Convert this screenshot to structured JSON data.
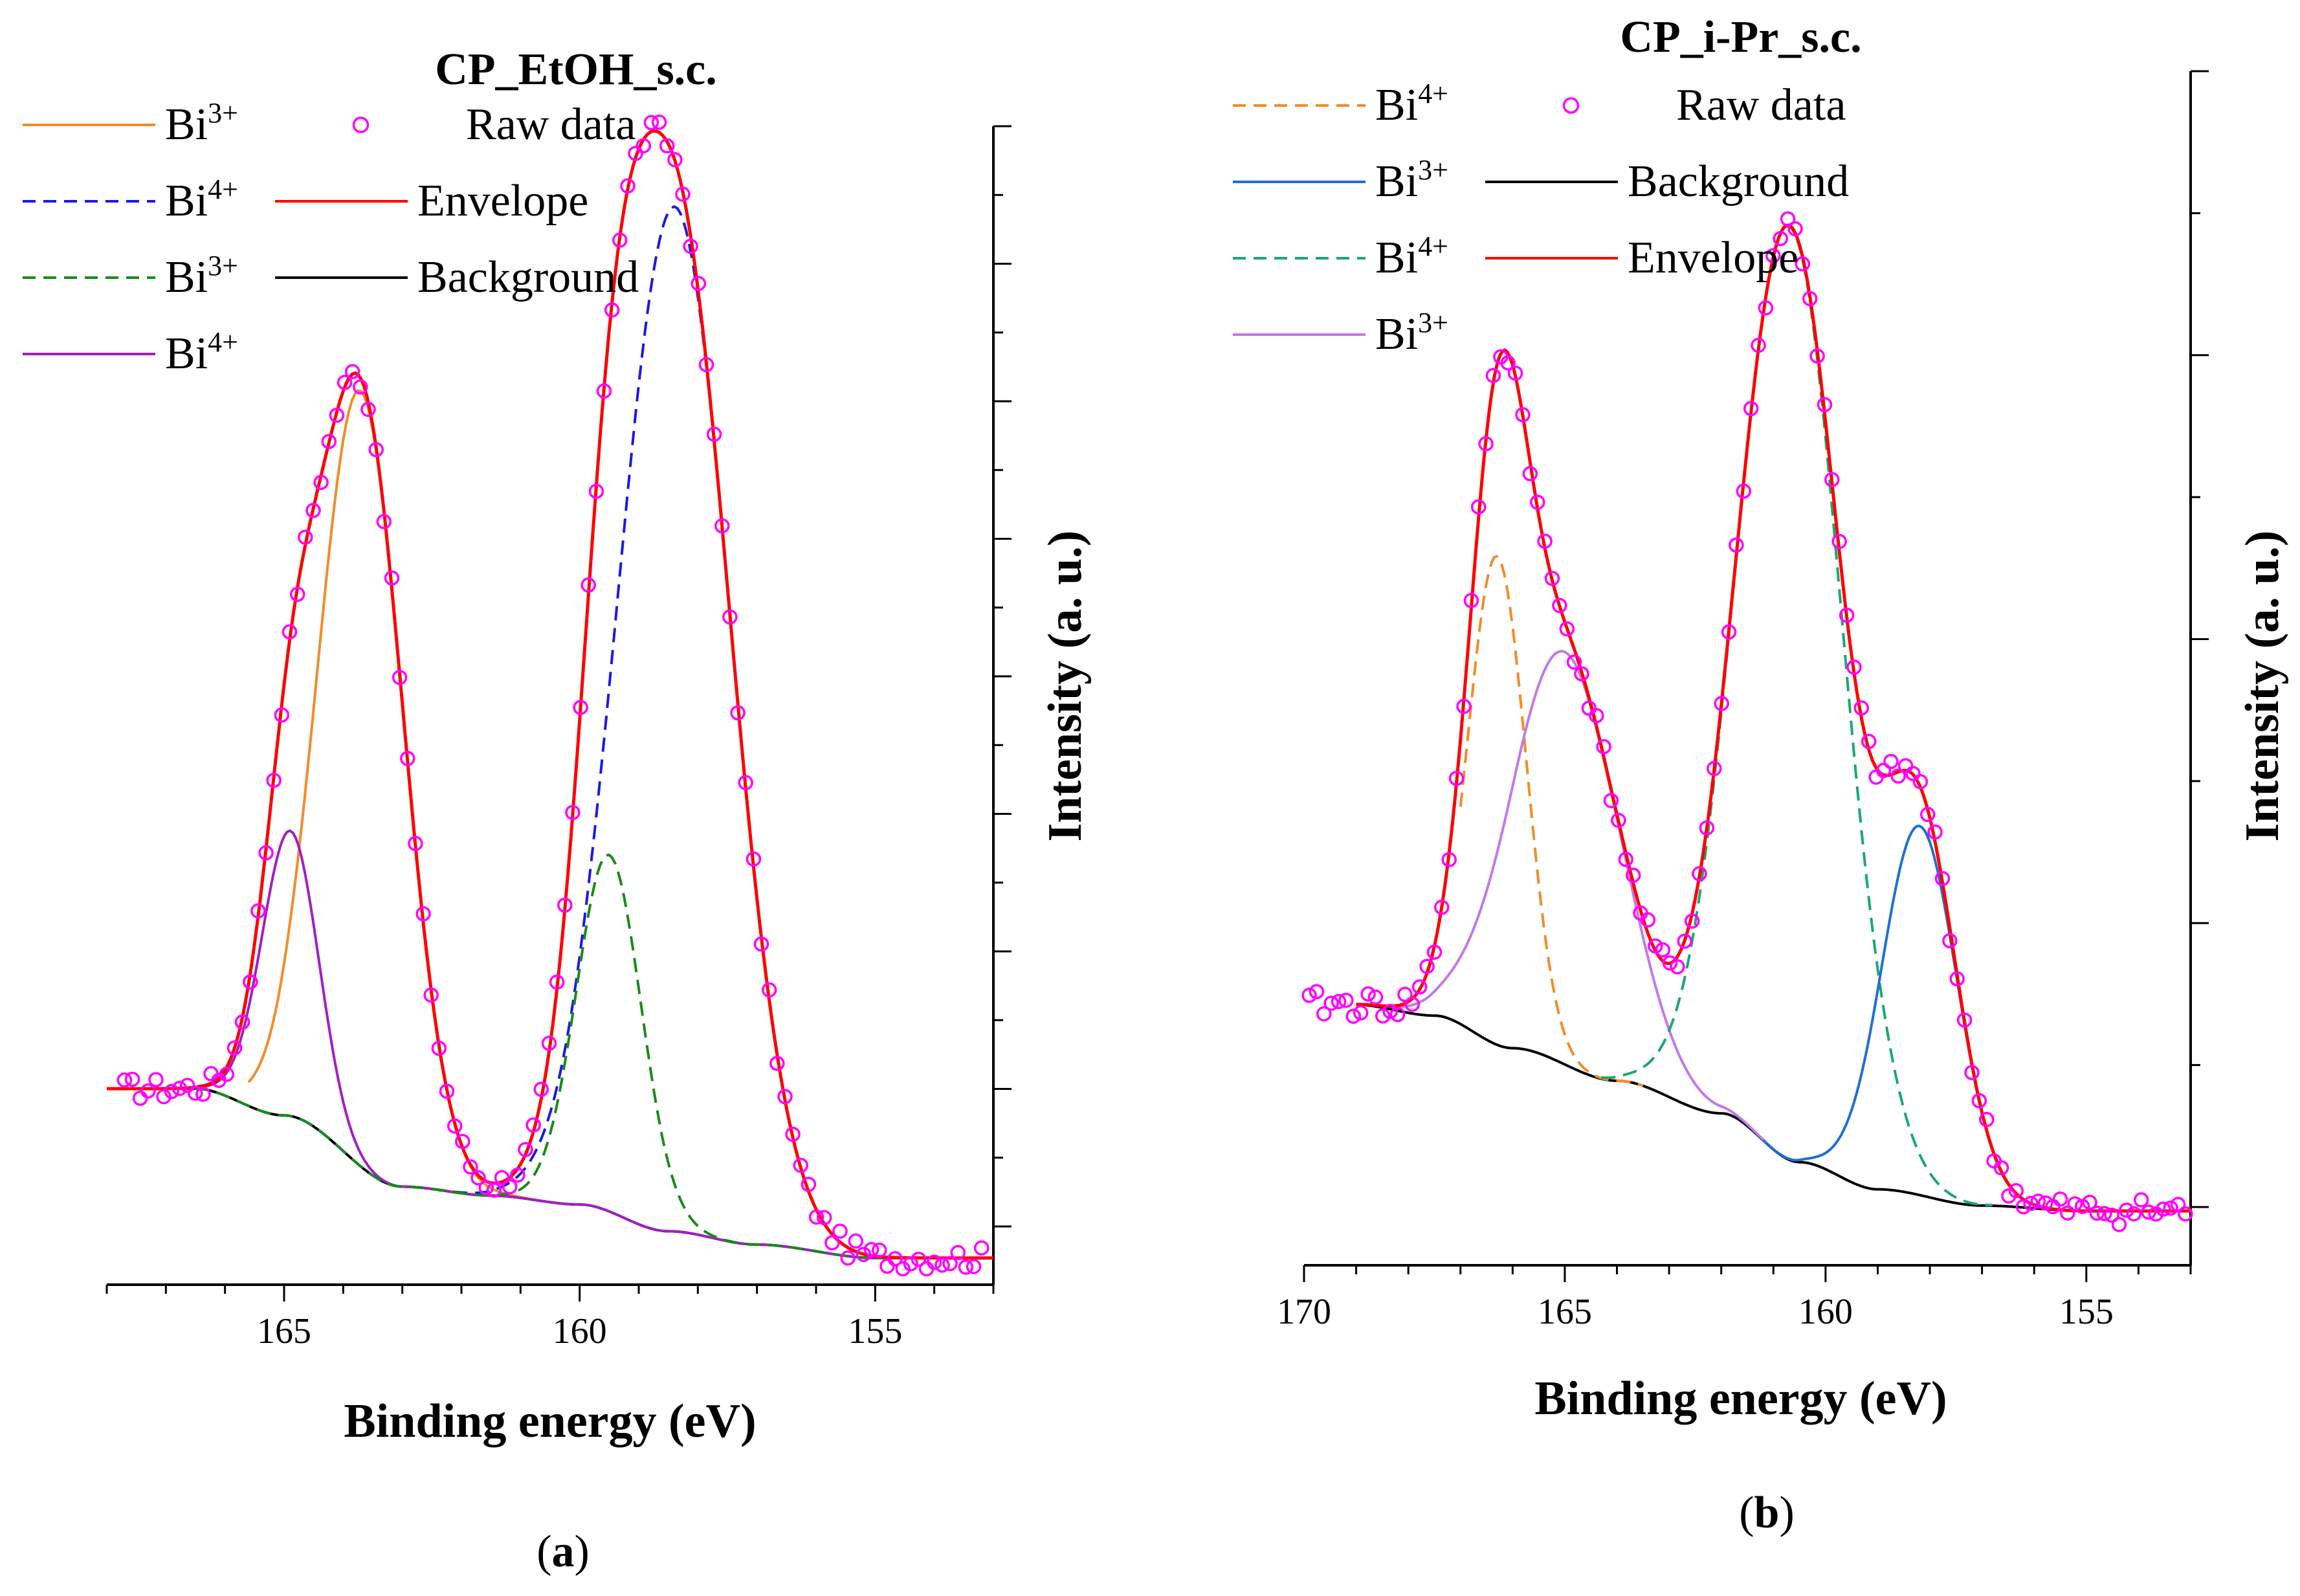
{
  "chart_data": [
    {
      "type": "line",
      "panel_label": "(a)",
      "panel_letter": "a",
      "title": "CP_EtOH_s.c.",
      "xlabel": "Binding energy (eV)",
      "ylabel": "Intensity (a. u.)",
      "xlim": [
        168,
        153
      ],
      "ylim": [
        -0.05,
        1.25
      ],
      "x_ticks": [
        165,
        160,
        155
      ],
      "x_tick_labels": [
        "165",
        "160",
        "155"
      ],
      "legend": [
        {
          "key": "bi3_orange",
          "label": "Bi",
          "sup": "3+",
          "color": "#f28c28",
          "style": "solid"
        },
        {
          "key": "raw",
          "label": "Raw data",
          "color": "#ff00ff",
          "style": "marker"
        },
        {
          "key": "bi4_blue",
          "label": "Bi",
          "sup": "4+",
          "color": "#1a1ae6",
          "style": "dashed"
        },
        {
          "key": "envelope",
          "label": "Envelope",
          "color": "#ff0000",
          "style": "solid"
        },
        {
          "key": "bi3_green",
          "label": "Bi",
          "sup": "3+",
          "color": "#1a8a1a",
          "style": "dashed"
        },
        {
          "key": "background",
          "label": "Background",
          "color": "#000000",
          "style": "solid"
        },
        {
          "key": "bi4_purple",
          "label": "Bi",
          "sup": "4+",
          "color": "#a020c0",
          "style": "solid"
        }
      ],
      "background_points": [
        [
          168,
          0.17
        ],
        [
          166.5,
          0.17
        ],
        [
          165,
          0.14
        ],
        [
          163,
          0.06
        ],
        [
          161.5,
          0.05
        ],
        [
          160,
          0.04
        ],
        [
          158.5,
          0.01
        ],
        [
          157,
          -0.005
        ],
        [
          155,
          -0.02
        ],
        [
          153,
          -0.02
        ]
      ],
      "components": [
        {
          "key": "bi3_orange",
          "center": 163.7,
          "height": 0.87,
          "sigma": 0.72,
          "show_from": 165.6,
          "show_to": 160.5
        },
        {
          "key": "bi4_purple",
          "center": 164.9,
          "height": 0.32,
          "sigma": 0.48
        },
        {
          "key": "bi4_blue",
          "center": 158.4,
          "height": 1.15,
          "sigma": 0.95
        },
        {
          "key": "bi3_green",
          "center": 159.5,
          "height": 0.4,
          "sigma": 0.55
        }
      ],
      "raw_range": [
        167.7,
        153.2
      ],
      "raw_count": 110
    },
    {
      "type": "line",
      "panel_label": "(b)",
      "panel_letter": "b",
      "title": "CP_i-Pr_s.c.",
      "xlabel": "Binding energy (eV)",
      "ylabel": "Intensity (a. u.)",
      "xlim": [
        170,
        153
      ],
      "ylim": [
        -0.05,
        1.05
      ],
      "x_ticks": [
        170,
        165,
        160,
        155
      ],
      "x_tick_labels": [
        "170",
        "165",
        "160",
        "155"
      ],
      "legend": [
        {
          "key": "bi4_orange",
          "label": "Bi",
          "sup": "4+",
          "color": "#f28c28",
          "style": "dashed"
        },
        {
          "key": "raw",
          "label": "Raw data",
          "color": "#ff00ff",
          "style": "marker"
        },
        {
          "key": "bi3_blue",
          "label": "Bi",
          "sup": "3+",
          "color": "#1f6fd6",
          "style": "solid"
        },
        {
          "key": "background",
          "label": "Background",
          "color": "#000000",
          "style": "solid"
        },
        {
          "key": "bi4_green",
          "label": "Bi",
          "sup": "4+",
          "color": "#1aa870",
          "style": "dashed"
        },
        {
          "key": "envelope",
          "label": "Envelope",
          "color": "#ff0000",
          "style": "solid"
        },
        {
          "key": "bi3_lilac",
          "label": "Bi",
          "sup": "3+",
          "color": "#c07ae6",
          "style": "solid"
        }
      ],
      "background_points": [
        [
          169,
          0.19
        ],
        [
          167.5,
          0.18
        ],
        [
          166,
          0.15
        ],
        [
          164,
          0.12
        ],
        [
          162,
          0.09
        ],
        [
          160.5,
          0.045
        ],
        [
          159,
          0.02
        ],
        [
          157,
          0.005
        ],
        [
          155,
          0.0
        ],
        [
          153,
          0.0
        ]
      ],
      "components": [
        {
          "key": "bi4_orange",
          "center": 166.3,
          "height": 0.45,
          "sigma": 0.55,
          "show_from": 167.0,
          "show_to": 163.5
        },
        {
          "key": "bi3_lilac",
          "center": 165.0,
          "height": 0.38,
          "sigma": 1.05,
          "show_from": 168.5,
          "show_to": 161.0
        },
        {
          "key": "bi4_green",
          "center": 160.7,
          "height": 0.86,
          "sigma": 1.0,
          "show_from": 164.3,
          "show_to": 156.8
        },
        {
          "key": "bi3_blue",
          "center": 158.2,
          "height": 0.34,
          "sigma": 0.72,
          "show_from": 161.2,
          "show_to": 154.5
        }
      ],
      "raw_range": [
        169.9,
        153.1
      ],
      "raw_count": 120
    }
  ]
}
